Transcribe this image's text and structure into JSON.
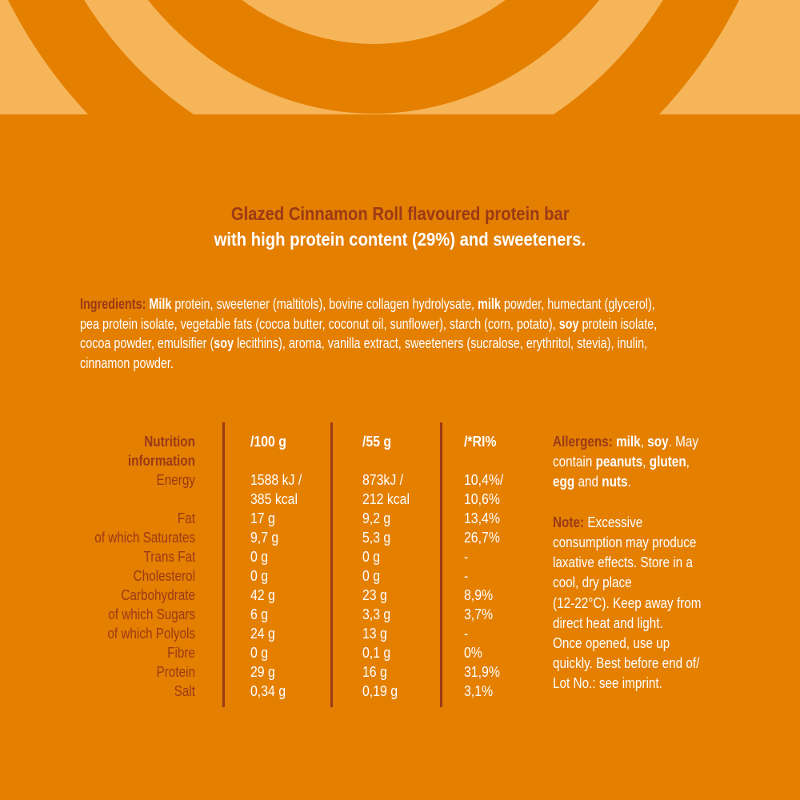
{
  "colors": {
    "background": "#E47F00",
    "accent_light": "#F6B558",
    "brown": "#9B3A17",
    "text": "#FFFFFF"
  },
  "title": {
    "line1": "Glazed Cinnamon Roll flavoured protein bar",
    "line2": "with high protein content (29%) and sweeteners."
  },
  "ingredients": {
    "lines": [
      [
        {
          "t": "Ingredients: ",
          "s": "label"
        },
        {
          "t": "Milk",
          "s": "bold"
        },
        {
          "t": " protein, sweetener (maltitols), bovine collagen hydrolysate, "
        },
        {
          "t": "milk",
          "s": "bold"
        },
        {
          "t": " powder, humectant (glycerol),"
        }
      ],
      [
        {
          "t": "pea protein isolate, vegetable fats (cocoa butter, coconut oil, sunflower), starch (corn, potato), "
        },
        {
          "t": "soy",
          "s": "bold"
        },
        {
          "t": " protein isolate,"
        }
      ],
      [
        {
          "t": "cocoa powder, emulsifier ("
        },
        {
          "t": "soy",
          "s": "bold"
        },
        {
          "t": " lecithins), aroma, vanilla extract, sweeteners (sucralose, erythritol, stevia), inulin,"
        }
      ],
      [
        {
          "t": "cinnamon powder."
        }
      ]
    ]
  },
  "nutrition": {
    "header": {
      "label_line1": "Nutrition",
      "label_line2": "information",
      "col1": "/100 g",
      "col2": "/55 g",
      "col3": "/*RI%"
    },
    "rows": [
      {
        "label": "Energy",
        "c1": "1588 kJ /",
        "c2": "873kJ /",
        "c3": "10,4%/"
      },
      {
        "label": "",
        "c1": "385 kcal",
        "c2": "212 kcal",
        "c3": "10,6%"
      },
      {
        "label": "Fat",
        "c1": "17 g",
        "c2": "9,2 g",
        "c3": "13,4%"
      },
      {
        "label": "of which Saturates",
        "c1": "9,7 g",
        "c2": "5,3 g",
        "c3": "26,7%"
      },
      {
        "label": "Trans Fat",
        "c1": "0 g",
        "c2": "0 g",
        "c3": "-"
      },
      {
        "label": "Cholesterol",
        "c1": "0 g",
        "c2": "0 g",
        "c3": "-"
      },
      {
        "label": "Carbohydrate",
        "c1": "42 g",
        "c2": "23 g",
        "c3": "8,9%"
      },
      {
        "label": "of which Sugars",
        "c1": "6 g",
        "c2": "3,3 g",
        "c3": "3,7%"
      },
      {
        "label": "of which Polyols",
        "c1": "24 g",
        "c2": "13 g",
        "c3": "-"
      },
      {
        "label": "Fibre",
        "c1": "0 g",
        "c2": "0,1 g",
        "c3": "0%"
      },
      {
        "label": "Protein",
        "c1": "29 g",
        "c2": "16 g",
        "c3": "31,9%"
      },
      {
        "label": "Salt",
        "c1": "0,34 g",
        "c2": "0,19 g",
        "c3": "3,1%"
      }
    ]
  },
  "side": {
    "lines": [
      [
        {
          "t": "Allergens: ",
          "s": "label"
        },
        {
          "t": "milk",
          "s": "bold"
        },
        {
          "t": ", "
        },
        {
          "t": "soy",
          "s": "bold"
        },
        {
          "t": ". May"
        }
      ],
      [
        {
          "t": "contain "
        },
        {
          "t": "peanuts",
          "s": "bold"
        },
        {
          "t": ", "
        },
        {
          "t": "gluten",
          "s": "bold"
        },
        {
          "t": ","
        }
      ],
      [
        {
          "t": "egg",
          "s": "bold"
        },
        {
          "t": " and "
        },
        {
          "t": "nuts",
          "s": "bold"
        },
        {
          "t": "."
        }
      ],
      [],
      [
        {
          "t": "Note: ",
          "s": "label"
        },
        {
          "t": "Excessive"
        }
      ],
      [
        {
          "t": "consumption may produce"
        }
      ],
      [
        {
          "t": "laxative effects. Store in a"
        }
      ],
      [
        {
          "t": "cool, dry place"
        }
      ],
      [
        {
          "t": "(12-22°C). Keep away from"
        }
      ],
      [
        {
          "t": "direct heat and light."
        }
      ],
      [
        {
          "t": "Once opened, use up"
        }
      ],
      [
        {
          "t": "quickly. Best before end of/"
        }
      ],
      [
        {
          "t": "Lot No.: see imprint."
        }
      ]
    ]
  }
}
